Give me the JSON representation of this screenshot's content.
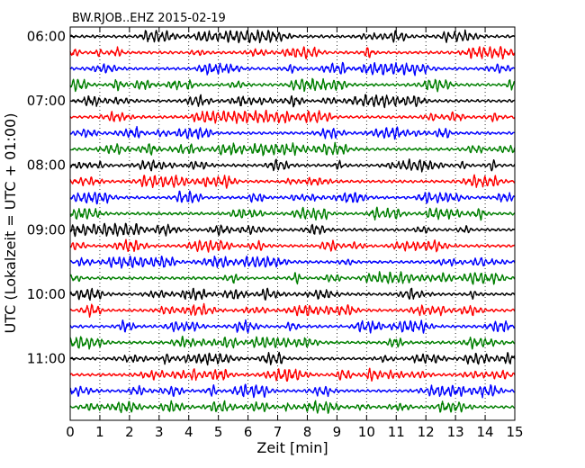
{
  "chart_data": {
    "type": "line",
    "title": "BW.RJOB..EHZ 2015-02-19",
    "xlabel": "Zeit  [min]",
    "ylabel": "UTC (Lokalzeit = UTC + 01:00)",
    "xlim": [
      0,
      15
    ],
    "x_ticks": [
      "0",
      "1",
      "2",
      "3",
      "4",
      "5",
      "6",
      "7",
      "8",
      "9",
      "10",
      "11",
      "12",
      "13",
      "14",
      "15"
    ],
    "y_tick_labels": [
      "06:00",
      "07:00",
      "08:00",
      "09:00",
      "10:00",
      "11:00"
    ],
    "y_tick_rows": [
      0,
      4,
      8,
      12,
      16,
      20
    ],
    "row_count": 24,
    "row_interval_minutes": 15,
    "first_row_start": "06:00",
    "trace_colors": [
      "#000000",
      "#ff0000",
      "#0000ff",
      "#007f00"
    ],
    "grid": "vertical dotted lines at each minute"
  }
}
